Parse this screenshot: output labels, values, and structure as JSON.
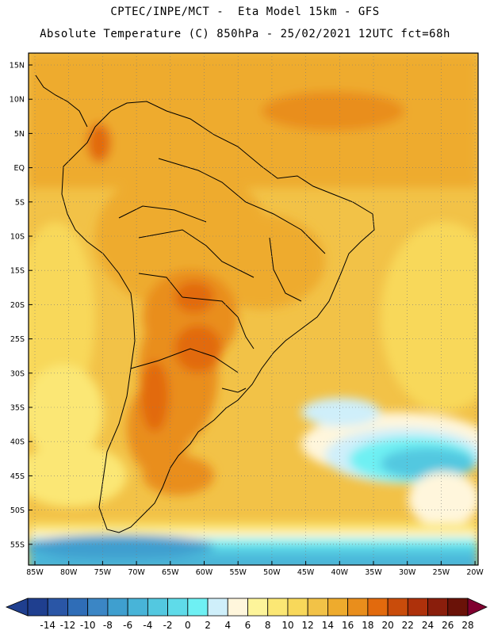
{
  "header": {
    "line1": "CPTEC/INPE/MCT -  Eta Model 15km - GFS",
    "line2": "Absolute Temperature (C) 850hPa - 25/02/2021 12UTC fct=68h"
  },
  "map": {
    "lat_ticks": [
      "15N",
      "10N",
      "5N",
      "EQ",
      "5S",
      "10S",
      "15S",
      "20S",
      "25S",
      "30S",
      "35S",
      "40S",
      "45S",
      "50S",
      "55S"
    ],
    "lon_ticks": [
      "85W",
      "80W",
      "75W",
      "70W",
      "65W",
      "60W",
      "55W",
      "50W",
      "45W",
      "40W",
      "35W",
      "30W",
      "25W",
      "20W"
    ]
  },
  "colorbar": {
    "labels": [
      "-14",
      "-12",
      "-10",
      "-8",
      "-6",
      "-4",
      "-2",
      "0",
      "2",
      "4",
      "6",
      "8",
      "10",
      "12",
      "14",
      "16",
      "18",
      "20",
      "22",
      "24",
      "26",
      "28"
    ],
    "colors": [
      "#1f3f8f",
      "#2a56a6",
      "#2f6db7",
      "#3b86c5",
      "#3f9fcf",
      "#48b4d8",
      "#53c8e0",
      "#5fdbe9",
      "#6ef0f3",
      "#cfeffa",
      "#fff6dc",
      "#fdf49a",
      "#fbe774",
      "#f8d85a",
      "#f2c247",
      "#eeab2d",
      "#e98e1c",
      "#e26a0d",
      "#c94c0b",
      "#ae310b",
      "#8a1e0c",
      "#6a1208",
      "#800030"
    ]
  },
  "icons": {
    "left_arrow": "colorbar-left-triangle",
    "right_arrow": "colorbar-right-triangle"
  }
}
